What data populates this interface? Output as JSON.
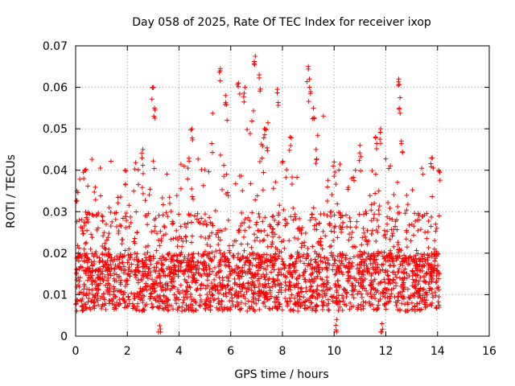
{
  "chart_data": {
    "type": "scatter",
    "title": "Day 058 of 2025, Rate Of TEC Index for receiver ixop",
    "xlabel": "GPS time / hours",
    "ylabel": "ROTI / TECUs",
    "xlim": [
      0,
      16
    ],
    "ylim": [
      0,
      0.07
    ],
    "xticks": [
      0,
      2,
      4,
      6,
      8,
      10,
      12,
      14,
      16
    ],
    "yticks": [
      0,
      0.01,
      0.02,
      0.03,
      0.04,
      0.05,
      0.06,
      0.07
    ],
    "xtick_labels": [
      "0",
      "2",
      "4",
      "6",
      "8",
      "10",
      "12",
      "14",
      "16"
    ],
    "ytick_labels": [
      "0",
      "0.01",
      "0.02",
      "0.03",
      "0.04",
      "0.05",
      "0.06",
      "0.07"
    ],
    "grid": true,
    "marker": "plus",
    "color": "#ff0000",
    "series": [
      {
        "name": "ROTI",
        "x_range": [
          0,
          14.1
        ],
        "typical_band": [
          0.006,
          0.02
        ],
        "notable_points": [
          {
            "x": 0.05,
            "y": 0.035
          },
          {
            "x": 0.35,
            "y": 0.04
          },
          {
            "x": 1.1,
            "y": 0.025
          },
          {
            "x": 1.9,
            "y": 0.04
          },
          {
            "x": 2.6,
            "y": 0.045
          },
          {
            "x": 3.0,
            "y": 0.06
          },
          {
            "x": 3.05,
            "y": 0.055
          },
          {
            "x": 3.25,
            "y": 0.0025
          },
          {
            "x": 4.5,
            "y": 0.05
          },
          {
            "x": 5.6,
            "y": 0.0645
          },
          {
            "x": 5.8,
            "y": 0.058
          },
          {
            "x": 6.3,
            "y": 0.061
          },
          {
            "x": 6.55,
            "y": 0.06
          },
          {
            "x": 6.95,
            "y": 0.0675
          },
          {
            "x": 7.1,
            "y": 0.063
          },
          {
            "x": 7.3,
            "y": 0.05
          },
          {
            "x": 7.8,
            "y": 0.0595
          },
          {
            "x": 8.3,
            "y": 0.048
          },
          {
            "x": 9.0,
            "y": 0.065
          },
          {
            "x": 9.05,
            "y": 0.06
          },
          {
            "x": 9.2,
            "y": 0.055
          },
          {
            "x": 9.3,
            "y": 0.045
          },
          {
            "x": 10.0,
            "y": 0.042
          },
          {
            "x": 10.1,
            "y": 0.004
          },
          {
            "x": 11.0,
            "y": 0.046
          },
          {
            "x": 11.6,
            "y": 0.048
          },
          {
            "x": 11.8,
            "y": 0.05
          },
          {
            "x": 11.85,
            "y": 0.003
          },
          {
            "x": 12.5,
            "y": 0.062
          },
          {
            "x": 12.55,
            "y": 0.0575
          },
          {
            "x": 12.6,
            "y": 0.047
          },
          {
            "x": 13.8,
            "y": 0.043
          },
          {
            "x": 14.05,
            "y": 0.04
          }
        ]
      }
    ]
  }
}
